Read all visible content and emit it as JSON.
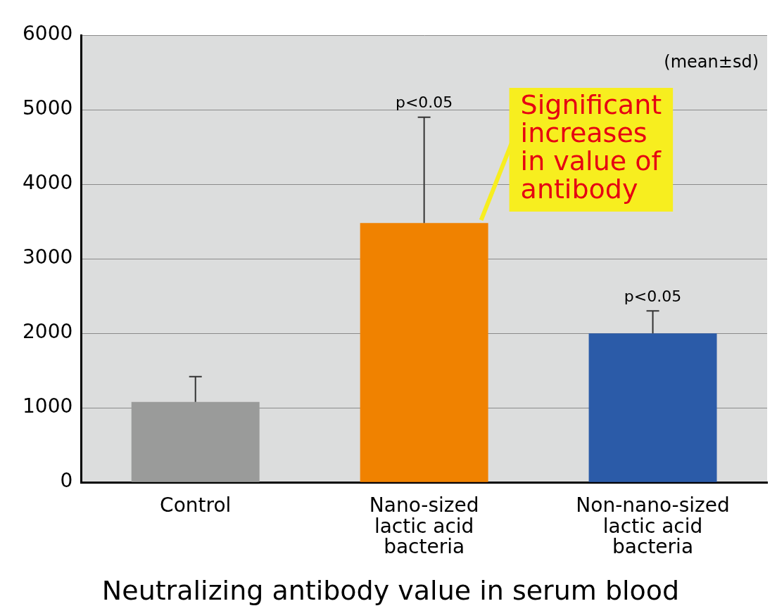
{
  "chart_data": {
    "type": "bar",
    "title": "Neutralizing antibody value in serum blood",
    "subtitle": "(mean±sd)",
    "categories": [
      [
        "Control"
      ],
      [
        "Nano-sized",
        "lactic acid",
        "bacteria"
      ],
      [
        "Non-nano-sized",
        "lactic acid",
        "bacteria"
      ]
    ],
    "values": [
      1080,
      3480,
      2000
    ],
    "sd": [
      340,
      1420,
      300
    ],
    "p_labels": [
      null,
      "p<0.05",
      "p<0.05"
    ],
    "callout": {
      "text": [
        "Significant",
        "increases",
        "in value of",
        "antibody"
      ],
      "category": 1
    },
    "colors": [
      "#9a9b9a",
      "#f08200",
      "#2b5ba8"
    ],
    "ylim": [
      0,
      6000
    ],
    "yticks": [
      0,
      1000,
      2000,
      3000,
      4000,
      5000,
      6000
    ],
    "grid": true
  }
}
